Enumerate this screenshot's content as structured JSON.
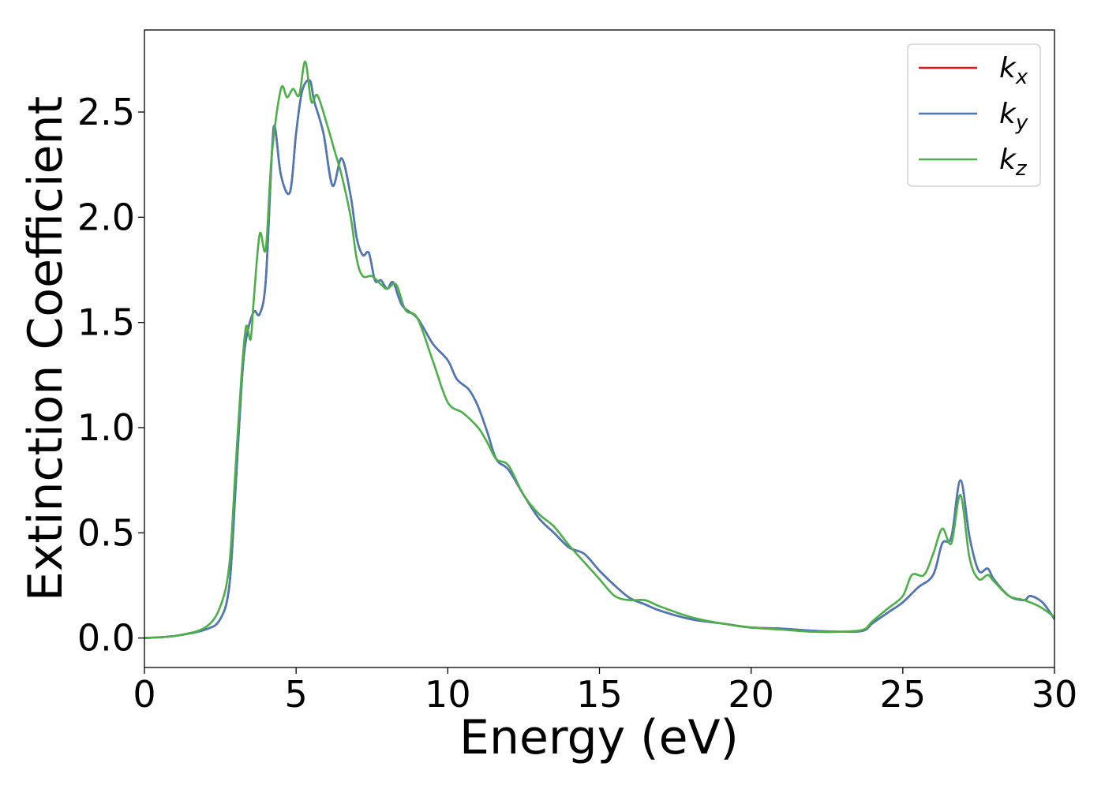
{
  "chart_data": {
    "type": "line",
    "title": "",
    "xlabel": "Energy (eV)",
    "ylabel": "Extinction Coefficient",
    "xlim": [
      0,
      30
    ],
    "ylim": [
      -0.14,
      2.89
    ],
    "xticks": [
      "0",
      "5",
      "10",
      "15",
      "20",
      "25",
      "30"
    ],
    "yticks": [
      "0.0",
      "0.5",
      "1.0",
      "1.5",
      "2.0",
      "2.5"
    ],
    "grid": false,
    "legend_position": "top-right",
    "series": [
      {
        "name": "k_x",
        "legend_base": "k",
        "legend_sub": "x",
        "color": "#e41a1c",
        "points": [
          [
            0,
            0.0
          ],
          [
            1,
            0.01
          ],
          [
            2,
            0.04
          ],
          [
            2.5,
            0.09
          ],
          [
            2.8,
            0.25
          ],
          [
            3.0,
            0.7
          ],
          [
            3.2,
            1.2
          ],
          [
            3.35,
            1.42
          ],
          [
            3.6,
            1.55
          ],
          [
            3.8,
            1.54
          ],
          [
            4.0,
            1.7
          ],
          [
            4.2,
            2.3
          ],
          [
            4.3,
            2.43
          ],
          [
            4.5,
            2.2
          ],
          [
            4.8,
            2.12
          ],
          [
            5.0,
            2.4
          ],
          [
            5.2,
            2.6
          ],
          [
            5.45,
            2.65
          ],
          [
            5.6,
            2.55
          ],
          [
            5.9,
            2.4
          ],
          [
            6.2,
            2.15
          ],
          [
            6.5,
            2.28
          ],
          [
            6.8,
            2.1
          ],
          [
            7.0,
            1.9
          ],
          [
            7.2,
            1.82
          ],
          [
            7.4,
            1.83
          ],
          [
            7.6,
            1.7
          ],
          [
            7.8,
            1.7
          ],
          [
            8.0,
            1.66
          ],
          [
            8.2,
            1.69
          ],
          [
            8.5,
            1.58
          ],
          [
            9.0,
            1.52
          ],
          [
            9.5,
            1.4
          ],
          [
            10.0,
            1.32
          ],
          [
            10.3,
            1.23
          ],
          [
            10.7,
            1.18
          ],
          [
            11.0,
            1.1
          ],
          [
            11.3,
            0.98
          ],
          [
            11.6,
            0.85
          ],
          [
            12.0,
            0.8
          ],
          [
            12.5,
            0.68
          ],
          [
            13.0,
            0.57
          ],
          [
            13.5,
            0.5
          ],
          [
            14.0,
            0.43
          ],
          [
            14.5,
            0.4
          ],
          [
            15.0,
            0.32
          ],
          [
            15.5,
            0.25
          ],
          [
            16.0,
            0.19
          ],
          [
            16.5,
            0.16
          ],
          [
            17.0,
            0.13
          ],
          [
            18.0,
            0.09
          ],
          [
            19.0,
            0.07
          ],
          [
            20.0,
            0.05
          ],
          [
            21.0,
            0.045
          ],
          [
            22.0,
            0.035
          ],
          [
            23.0,
            0.03
          ],
          [
            23.7,
            0.035
          ],
          [
            24.0,
            0.07
          ],
          [
            24.5,
            0.12
          ],
          [
            25.0,
            0.17
          ],
          [
            25.5,
            0.24
          ],
          [
            26.0,
            0.3
          ],
          [
            26.3,
            0.45
          ],
          [
            26.6,
            0.48
          ],
          [
            26.9,
            0.75
          ],
          [
            27.2,
            0.48
          ],
          [
            27.5,
            0.32
          ],
          [
            27.8,
            0.33
          ],
          [
            28.0,
            0.28
          ],
          [
            28.5,
            0.2
          ],
          [
            29.0,
            0.18
          ],
          [
            29.2,
            0.2
          ],
          [
            29.6,
            0.17
          ],
          [
            30.0,
            0.09
          ]
        ]
      },
      {
        "name": "k_y",
        "legend_base": "k",
        "legend_sub": "y",
        "color": "#4a7ab5",
        "points": [
          [
            0,
            0.0
          ],
          [
            1,
            0.01
          ],
          [
            2,
            0.04
          ],
          [
            2.5,
            0.09
          ],
          [
            2.8,
            0.25
          ],
          [
            3.0,
            0.7
          ],
          [
            3.2,
            1.2
          ],
          [
            3.35,
            1.42
          ],
          [
            3.6,
            1.55
          ],
          [
            3.8,
            1.54
          ],
          [
            4.0,
            1.7
          ],
          [
            4.2,
            2.3
          ],
          [
            4.3,
            2.43
          ],
          [
            4.5,
            2.2
          ],
          [
            4.8,
            2.12
          ],
          [
            5.0,
            2.4
          ],
          [
            5.2,
            2.6
          ],
          [
            5.45,
            2.65
          ],
          [
            5.6,
            2.55
          ],
          [
            5.9,
            2.4
          ],
          [
            6.2,
            2.15
          ],
          [
            6.5,
            2.28
          ],
          [
            6.8,
            2.1
          ],
          [
            7.0,
            1.9
          ],
          [
            7.2,
            1.82
          ],
          [
            7.4,
            1.83
          ],
          [
            7.6,
            1.7
          ],
          [
            7.8,
            1.7
          ],
          [
            8.0,
            1.66
          ],
          [
            8.2,
            1.69
          ],
          [
            8.5,
            1.58
          ],
          [
            9.0,
            1.52
          ],
          [
            9.5,
            1.4
          ],
          [
            10.0,
            1.32
          ],
          [
            10.3,
            1.23
          ],
          [
            10.7,
            1.18
          ],
          [
            11.0,
            1.1
          ],
          [
            11.3,
            0.98
          ],
          [
            11.6,
            0.85
          ],
          [
            12.0,
            0.8
          ],
          [
            12.5,
            0.68
          ],
          [
            13.0,
            0.57
          ],
          [
            13.5,
            0.5
          ],
          [
            14.0,
            0.43
          ],
          [
            14.5,
            0.4
          ],
          [
            15.0,
            0.32
          ],
          [
            15.5,
            0.25
          ],
          [
            16.0,
            0.19
          ],
          [
            16.5,
            0.16
          ],
          [
            17.0,
            0.13
          ],
          [
            18.0,
            0.09
          ],
          [
            19.0,
            0.07
          ],
          [
            20.0,
            0.05
          ],
          [
            21.0,
            0.045
          ],
          [
            22.0,
            0.035
          ],
          [
            23.0,
            0.03
          ],
          [
            23.7,
            0.035
          ],
          [
            24.0,
            0.07
          ],
          [
            24.5,
            0.12
          ],
          [
            25.0,
            0.17
          ],
          [
            25.5,
            0.24
          ],
          [
            26.0,
            0.3
          ],
          [
            26.3,
            0.45
          ],
          [
            26.6,
            0.48
          ],
          [
            26.9,
            0.75
          ],
          [
            27.2,
            0.48
          ],
          [
            27.5,
            0.32
          ],
          [
            27.8,
            0.33
          ],
          [
            28.0,
            0.28
          ],
          [
            28.5,
            0.2
          ],
          [
            29.0,
            0.18
          ],
          [
            29.2,
            0.2
          ],
          [
            29.6,
            0.17
          ],
          [
            30.0,
            0.09
          ]
        ]
      },
      {
        "name": "k_z",
        "legend_base": "k",
        "legend_sub": "z",
        "color": "#4daf4a",
        "points": [
          [
            0,
            0.0
          ],
          [
            1,
            0.01
          ],
          [
            2,
            0.05
          ],
          [
            2.5,
            0.15
          ],
          [
            2.8,
            0.35
          ],
          [
            3.0,
            0.8
          ],
          [
            3.2,
            1.25
          ],
          [
            3.35,
            1.48
          ],
          [
            3.5,
            1.42
          ],
          [
            3.6,
            1.6
          ],
          [
            3.8,
            1.92
          ],
          [
            4.0,
            1.85
          ],
          [
            4.2,
            2.3
          ],
          [
            4.5,
            2.61
          ],
          [
            4.7,
            2.57
          ],
          [
            4.9,
            2.61
          ],
          [
            5.1,
            2.58
          ],
          [
            5.3,
            2.74
          ],
          [
            5.5,
            2.55
          ],
          [
            5.7,
            2.58
          ],
          [
            6.0,
            2.45
          ],
          [
            6.3,
            2.3
          ],
          [
            6.5,
            2.2
          ],
          [
            6.8,
            2.0
          ],
          [
            7.0,
            1.8
          ],
          [
            7.2,
            1.72
          ],
          [
            7.5,
            1.72
          ],
          [
            7.8,
            1.68
          ],
          [
            8.0,
            1.66
          ],
          [
            8.3,
            1.68
          ],
          [
            8.6,
            1.56
          ],
          [
            9.0,
            1.52
          ],
          [
            9.5,
            1.32
          ],
          [
            10.0,
            1.12
          ],
          [
            10.5,
            1.07
          ],
          [
            11.0,
            1.0
          ],
          [
            11.3,
            0.93
          ],
          [
            11.6,
            0.85
          ],
          [
            12.0,
            0.82
          ],
          [
            12.5,
            0.68
          ],
          [
            13.0,
            0.59
          ],
          [
            13.5,
            0.53
          ],
          [
            14.0,
            0.44
          ],
          [
            14.5,
            0.36
          ],
          [
            15.0,
            0.28
          ],
          [
            15.5,
            0.2
          ],
          [
            16.0,
            0.18
          ],
          [
            16.5,
            0.18
          ],
          [
            17.0,
            0.15
          ],
          [
            18.0,
            0.1
          ],
          [
            19.0,
            0.07
          ],
          [
            20.0,
            0.05
          ],
          [
            21.0,
            0.04
          ],
          [
            22.0,
            0.03
          ],
          [
            23.0,
            0.03
          ],
          [
            23.7,
            0.04
          ],
          [
            24.0,
            0.08
          ],
          [
            24.5,
            0.14
          ],
          [
            25.0,
            0.2
          ],
          [
            25.3,
            0.3
          ],
          [
            25.7,
            0.3
          ],
          [
            26.0,
            0.4
          ],
          [
            26.3,
            0.52
          ],
          [
            26.6,
            0.45
          ],
          [
            26.9,
            0.68
          ],
          [
            27.2,
            0.38
          ],
          [
            27.5,
            0.28
          ],
          [
            27.8,
            0.3
          ],
          [
            28.0,
            0.27
          ],
          [
            28.5,
            0.2
          ],
          [
            29.0,
            0.18
          ],
          [
            29.5,
            0.15
          ],
          [
            30.0,
            0.1
          ]
        ]
      }
    ]
  }
}
